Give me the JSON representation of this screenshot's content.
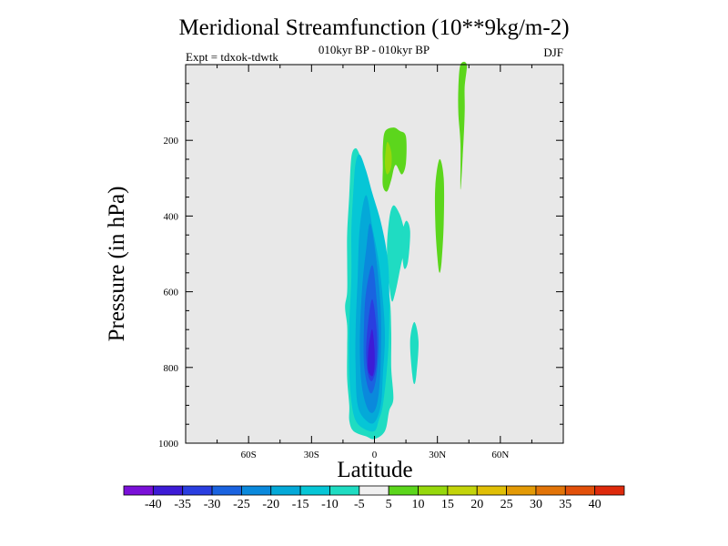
{
  "chart_data": {
    "type": "contour",
    "title": "Meridional Streamfunction (10**9kg/m-2)",
    "subtitle": "010kyr BP - 010kyr BP",
    "left_label": "Expt = tdxok-tdwtk",
    "right_label": "DJF",
    "xlabel": "Latitude",
    "ylabel": "Pressure (in hPa)",
    "xlim": [
      -90,
      90
    ],
    "ylim": [
      1000,
      0
    ],
    "x_ticks": [
      {
        "value": -60,
        "label": "60S"
      },
      {
        "value": -30,
        "label": "30S"
      },
      {
        "value": 0,
        "label": "0"
      },
      {
        "value": 30,
        "label": "30N"
      },
      {
        "value": 60,
        "label": "60N"
      }
    ],
    "y_ticks": [
      {
        "value": 200,
        "label": "200"
      },
      {
        "value": 400,
        "label": "400"
      },
      {
        "value": 600,
        "label": "600"
      },
      {
        "value": 800,
        "label": "800"
      },
      {
        "value": 1000,
        "label": "1000"
      }
    ],
    "background_color": "#e8e8e8",
    "colorbar": {
      "levels": [
        "-40",
        "-35",
        "-30",
        "-25",
        "-20",
        "-15",
        "-10",
        "-5",
        "5",
        "10",
        "15",
        "20",
        "25",
        "30",
        "35",
        "40"
      ],
      "colors": [
        "#7a10d8",
        "#3d1bd6",
        "#2a3ee0",
        "#1a63e0",
        "#0a89dc",
        "#04a9d8",
        "#06c6d6",
        "#1fdcc2",
        "#f0f0f0",
        "#5cd61c",
        "#96d80c",
        "#c3d40a",
        "#e0bf06",
        "#e39a06",
        "#e27408",
        "#e2500a",
        "#de2a0c"
      ]
    },
    "regions": [
      {
        "name": "negative-cell-outer",
        "level": "-10 to -5",
        "color": "#1fdcc2",
        "outline": [
          [
            -9,
            221
          ],
          [
            -7,
            239
          ],
          [
            -6,
            263
          ],
          [
            -5,
            316
          ],
          [
            -3,
            402
          ],
          [
            0,
            455
          ],
          [
            3,
            534
          ],
          [
            7,
            607
          ],
          [
            8,
            700
          ],
          [
            8,
            800
          ],
          [
            9,
            882
          ],
          [
            7,
            915
          ],
          [
            5,
            968
          ],
          [
            0,
            989
          ],
          [
            -4,
            982
          ],
          [
            -10,
            968
          ],
          [
            -12,
            940
          ],
          [
            -12,
            900
          ],
          [
            -13,
            830
          ],
          [
            -13,
            750
          ],
          [
            -13,
            690
          ],
          [
            -14,
            640
          ],
          [
            -13,
            600
          ],
          [
            -13,
            520
          ],
          [
            -13,
            445
          ],
          [
            -12,
            345
          ],
          [
            -11,
            245
          ]
        ]
      },
      {
        "name": "negative-cell-outer-tongue",
        "level": "-10 to -5",
        "color": "#1fdcc2",
        "outline": [
          [
            9,
            372
          ],
          [
            12,
            395
          ],
          [
            14,
            430
          ],
          [
            16,
            460
          ],
          [
            13,
            520
          ],
          [
            10,
            600
          ],
          [
            8,
            620
          ],
          [
            6,
            500
          ],
          [
            7,
            410
          ]
        ]
      },
      {
        "name": "negative-cell-spur-1",
        "level": "-10 to -5",
        "color": "#1fdcc2",
        "outline": [
          [
            15,
            413
          ],
          [
            17,
            440
          ],
          [
            16,
            520
          ],
          [
            14,
            536
          ],
          [
            13,
            460
          ]
        ]
      },
      {
        "name": "negative-cell-spur-2",
        "level": "-10 to -5",
        "color": "#1fdcc2",
        "outline": [
          [
            19,
            680
          ],
          [
            21,
            730
          ],
          [
            20,
            818
          ],
          [
            19,
            844
          ],
          [
            18,
            818
          ],
          [
            17,
            730
          ]
        ]
      },
      {
        "name": "negative-cell-10",
        "level": "-15 to -10",
        "color": "#06c6d6",
        "outline": [
          [
            -7,
            238
          ],
          [
            -4,
            280
          ],
          [
            -1,
            340
          ],
          [
            3,
            415
          ],
          [
            6,
            500
          ],
          [
            7,
            580
          ],
          [
            7,
            700
          ],
          [
            6,
            800
          ],
          [
            4,
            900
          ],
          [
            2,
            940
          ],
          [
            0,
            968
          ],
          [
            -5,
            962
          ],
          [
            -9,
            940
          ],
          [
            -11,
            890
          ],
          [
            -12,
            810
          ],
          [
            -12,
            690
          ],
          [
            -11,
            560
          ],
          [
            -11,
            440
          ],
          [
            -10,
            330
          ],
          [
            -9,
            260
          ]
        ]
      },
      {
        "name": "negative-cell-15",
        "level": "-20 to -15",
        "color": "#04a9d8",
        "outline": [
          [
            -4,
            345
          ],
          [
            -1,
            430
          ],
          [
            2,
            520
          ],
          [
            4,
            620
          ],
          [
            5,
            720
          ],
          [
            4,
            820
          ],
          [
            3,
            900
          ],
          [
            0,
            945
          ],
          [
            -4,
            940
          ],
          [
            -8,
            900
          ],
          [
            -9,
            800
          ],
          [
            -9,
            700
          ],
          [
            -8,
            560
          ],
          [
            -7,
            430
          ]
        ]
      },
      {
        "name": "negative-cell-20",
        "level": "-25 to -20",
        "color": "#0a89dc",
        "outline": [
          [
            -2,
            420
          ],
          [
            1,
            520
          ],
          [
            3,
            650
          ],
          [
            3,
            780
          ],
          [
            2,
            870
          ],
          [
            0,
            915
          ],
          [
            -3,
            912
          ],
          [
            -6,
            850
          ],
          [
            -7,
            740
          ],
          [
            -6,
            600
          ],
          [
            -4,
            490
          ]
        ]
      },
      {
        "name": "negative-cell-25",
        "level": "-30 to -25",
        "color": "#1a63e0",
        "outline": [
          [
            -1,
            530
          ],
          [
            1,
            620
          ],
          [
            2,
            730
          ],
          [
            1,
            820
          ],
          [
            -1,
            866
          ],
          [
            -3,
            855
          ],
          [
            -5,
            790
          ],
          [
            -5,
            690
          ],
          [
            -4,
            600
          ]
        ]
      },
      {
        "name": "negative-cell-30",
        "level": "-35 to -30",
        "color": "#2a3ee0",
        "outline": [
          [
            -1,
            620
          ],
          [
            1,
            700
          ],
          [
            1,
            790
          ],
          [
            -1,
            835
          ],
          [
            -3,
            820
          ],
          [
            -4,
            760
          ],
          [
            -3,
            680
          ]
        ]
      },
      {
        "name": "negative-cell-35",
        "level": "-40 to -35",
        "color": "#3d1bd6",
        "outline": [
          [
            -1,
            700
          ],
          [
            0,
            750
          ],
          [
            0,
            800
          ],
          [
            -1,
            823
          ],
          [
            -3,
            808
          ],
          [
            -3,
            760
          ],
          [
            -2,
            718
          ]
        ]
      },
      {
        "name": "positive-upper-cell",
        "level": "5 to 10",
        "color": "#5cd61c",
        "outline": [
          [
            5,
            177
          ],
          [
            9,
            166
          ],
          [
            12,
            175
          ],
          [
            15,
            190
          ],
          [
            15,
            260
          ],
          [
            13,
            290
          ],
          [
            10,
            265
          ],
          [
            8,
            305
          ],
          [
            6,
            335
          ],
          [
            4,
            320
          ],
          [
            4,
            270
          ],
          [
            4,
            220
          ]
        ]
      },
      {
        "name": "positive-upper-core",
        "level": "10 to 15",
        "color": "#96d80c",
        "outline": [
          [
            6,
            205
          ],
          [
            8,
            230
          ],
          [
            8,
            270
          ],
          [
            6,
            290
          ],
          [
            5,
            260
          ]
        ]
      },
      {
        "name": "positive-mid-cell",
        "level": "5 to 10",
        "color": "#5cd61c",
        "outline": [
          [
            31,
            250
          ],
          [
            33,
            300
          ],
          [
            33,
            420
          ],
          [
            32,
            520
          ],
          [
            31,
            550
          ],
          [
            30,
            510
          ],
          [
            29,
            420
          ],
          [
            29,
            320
          ]
        ]
      },
      {
        "name": "positive-high-cell",
        "level": "5 to 10",
        "color": "#5cd61c",
        "outline": [
          [
            41,
            0
          ],
          [
            44,
            0
          ],
          [
            43,
            60
          ],
          [
            43,
            130
          ],
          [
            42,
            250
          ],
          [
            41,
            330
          ],
          [
            41,
            210
          ],
          [
            40,
            130
          ],
          [
            40,
            60
          ]
        ]
      }
    ]
  }
}
